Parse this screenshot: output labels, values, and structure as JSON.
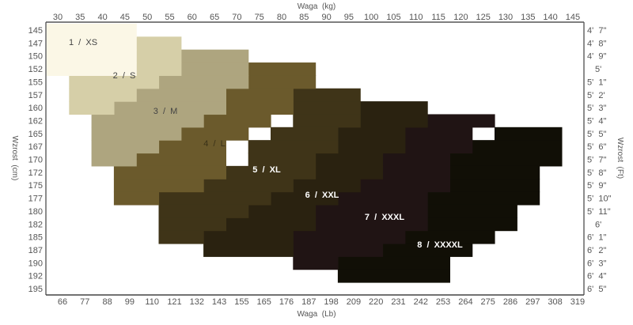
{
  "chart_data": {
    "type": "heatmap",
    "top_axis_label": "Waga  (kg)",
    "bottom_axis_label": "Waga  (Lb)",
    "left_axis_label": "Wzrost  (cm)",
    "right_axis_label": "Wzrost  (Ft)",
    "kg_ticks": [
      "30",
      "35",
      "40",
      "45",
      "50",
      "55",
      "60",
      "65",
      "70",
      "75",
      "80",
      "85",
      "90",
      "95",
      "100",
      "105",
      "110",
      "115",
      "120",
      "125",
      "130",
      "135",
      "140",
      "145"
    ],
    "lb_ticks": [
      "66",
      "77",
      "88",
      "99",
      "110",
      "121",
      "132",
      "143",
      "155",
      "165",
      "176",
      "187",
      "198",
      "209",
      "220",
      "231",
      "242",
      "253",
      "264",
      "275",
      "286",
      "297",
      "308",
      "319"
    ],
    "cm_ticks": [
      "145",
      "147",
      "150",
      "152",
      "155",
      "157",
      "160",
      "162",
      "165",
      "167",
      "170",
      "172",
      "175",
      "177",
      "180",
      "182",
      "185",
      "187",
      "190",
      "192",
      "195"
    ],
    "ft_ticks": [
      "4'  7\"",
      "4'  8\"",
      "4'  9\"",
      "5'",
      "5'  1\"",
      "5'  2'",
      "5'  3\"",
      "5'  4\"",
      "5'  5\"",
      "5'  6\"",
      "5'  7\"",
      "5'  8\"",
      "5'  9\"",
      "5'  10\"",
      "5'  11\"",
      "6'",
      "6'  1\"",
      "6'  2\"",
      "6'  3\"",
      "6'  4\"",
      "6'  5\""
    ],
    "sizes": [
      {
        "label": "1  /  XS",
        "color": "#fbf7e6",
        "text_color": "#444444",
        "ranges": [
          [
            145,
            30,
            45
          ],
          [
            147,
            30,
            45
          ],
          [
            150,
            30,
            45
          ],
          [
            152,
            30,
            45
          ]
        ]
      },
      {
        "label": "2  /  S",
        "color": "#d6cfa8",
        "text_color": "#444444",
        "ranges": [
          [
            147,
            50,
            55
          ],
          [
            150,
            45,
            55
          ],
          [
            152,
            40,
            55
          ],
          [
            155,
            35,
            50
          ],
          [
            157,
            35,
            45
          ],
          [
            160,
            35,
            40
          ]
        ]
      },
      {
        "label": "3  /  M",
        "color": "#aea57f",
        "text_color": "#444444",
        "ranges": [
          [
            150,
            60,
            70
          ],
          [
            152,
            60,
            70
          ],
          [
            155,
            55,
            70
          ],
          [
            157,
            50,
            65
          ],
          [
            160,
            45,
            65
          ],
          [
            162,
            40,
            60
          ],
          [
            165,
            40,
            55
          ],
          [
            167,
            40,
            50
          ],
          [
            170,
            40,
            45
          ]
        ]
      },
      {
        "label": "4  /  L",
        "color": "#6b5a2c",
        "text_color": "#3a3218",
        "ranges": [
          [
            152,
            75,
            85
          ],
          [
            155,
            75,
            85
          ],
          [
            157,
            70,
            80
          ],
          [
            160,
            65,
            80
          ],
          [
            162,
            60,
            75
          ],
          [
            165,
            55,
            70
          ],
          [
            167,
            50,
            65
          ],
          [
            170,
            50,
            65
          ],
          [
            172,
            45,
            65
          ],
          [
            175,
            45,
            60
          ],
          [
            177,
            45,
            50
          ]
        ]
      },
      {
        "label": "5  /  XL",
        "color": "#3f3418",
        "text_color": "#ffffff",
        "ranges": [
          [
            157,
            85,
            95
          ],
          [
            160,
            85,
            95
          ],
          [
            162,
            85,
            95
          ],
          [
            165,
            80,
            90
          ],
          [
            167,
            75,
            90
          ],
          [
            170,
            75,
            85
          ],
          [
            172,
            70,
            85
          ],
          [
            175,
            65,
            80
          ],
          [
            177,
            55,
            75
          ],
          [
            180,
            55,
            70
          ],
          [
            182,
            55,
            65
          ],
          [
            185,
            55,
            60
          ]
        ]
      },
      {
        "label": "6  /  XXL",
        "color": "#2a2210",
        "text_color": "#ffffff",
        "ranges": [
          [
            160,
            100,
            110
          ],
          [
            162,
            100,
            110
          ],
          [
            165,
            95,
            105
          ],
          [
            167,
            95,
            105
          ],
          [
            170,
            90,
            100
          ],
          [
            172,
            90,
            100
          ],
          [
            175,
            85,
            95
          ],
          [
            177,
            80,
            90
          ],
          [
            180,
            75,
            85
          ],
          [
            182,
            70,
            85
          ],
          [
            185,
            65,
            80
          ],
          [
            187,
            65,
            80
          ]
        ]
      },
      {
        "label": "7  /  XXXL",
        "color": "#201414",
        "text_color": "#ffffff",
        "ranges": [
          [
            162,
            115,
            125
          ],
          [
            165,
            110,
            120
          ],
          [
            167,
            110,
            120
          ],
          [
            170,
            105,
            115
          ],
          [
            172,
            105,
            115
          ],
          [
            175,
            100,
            115
          ],
          [
            177,
            95,
            110
          ],
          [
            180,
            90,
            110
          ],
          [
            182,
            90,
            110
          ],
          [
            185,
            85,
            105
          ],
          [
            187,
            85,
            100
          ],
          [
            190,
            85,
            90
          ]
        ]
      },
      {
        "label": "8  /  XXXXL",
        "color": "#110f06",
        "text_color": "#ffffff",
        "ranges": [
          [
            165,
            130,
            140
          ],
          [
            167,
            125,
            140
          ],
          [
            170,
            120,
            140
          ],
          [
            172,
            120,
            135
          ],
          [
            175,
            120,
            135
          ],
          [
            177,
            115,
            135
          ],
          [
            180,
            110,
            130
          ],
          [
            182,
            110,
            130
          ],
          [
            185,
            105,
            125
          ],
          [
            187,
            100,
            120
          ],
          [
            190,
            95,
            115
          ],
          [
            192,
            95,
            115
          ]
        ]
      }
    ]
  }
}
